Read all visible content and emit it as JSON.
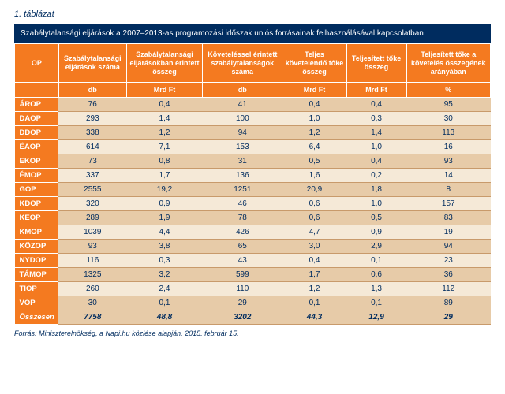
{
  "caption": "1. táblázat",
  "title": "Szabálytalansági eljárások a 2007–2013-as programozási időszak uniós forrásainak felhasználásával kapcsolatban",
  "headers": {
    "c0": "OP",
    "c1": "Szabálytalansági eljárások száma",
    "c2": "Szabálytalansági eljárásokban érintett összeg",
    "c3": "Követeléssel érintett szabálytalanságok száma",
    "c4": "Teljes követelendő tőke összeg",
    "c5": "Teljesített tőke összeg",
    "c6": "Teljesített tőke a követelés összegének arányában"
  },
  "units": {
    "c1": "db",
    "c2": "Mrd Ft",
    "c3": "db",
    "c4": "Mrd Ft",
    "c5": "Mrd Ft",
    "c6": "%"
  },
  "rows": [
    {
      "op": "ÁROP",
      "c1": "76",
      "c2": "0,4",
      "c3": "41",
      "c4": "0,4",
      "c5": "0,4",
      "c6": "95"
    },
    {
      "op": "DAOP",
      "c1": "293",
      "c2": "1,4",
      "c3": "100",
      "c4": "1,0",
      "c5": "0,3",
      "c6": "30"
    },
    {
      "op": "DDOP",
      "c1": "338",
      "c2": "1,2",
      "c3": "94",
      "c4": "1,2",
      "c5": "1,4",
      "c6": "113"
    },
    {
      "op": "ÉAOP",
      "c1": "614",
      "c2": "7,1",
      "c3": "153",
      "c4": "6,4",
      "c5": "1,0",
      "c6": "16"
    },
    {
      "op": "EKOP",
      "c1": "73",
      "c2": "0,8",
      "c3": "31",
      "c4": "0,5",
      "c5": "0,4",
      "c6": "93"
    },
    {
      "op": "ÉMOP",
      "c1": "337",
      "c2": "1,7",
      "c3": "136",
      "c4": "1,6",
      "c5": "0,2",
      "c6": "14"
    },
    {
      "op": "GOP",
      "c1": "2555",
      "c2": "19,2",
      "c3": "1251",
      "c4": "20,9",
      "c5": "1,8",
      "c6": "8"
    },
    {
      "op": "KDOP",
      "c1": "320",
      "c2": "0,9",
      "c3": "46",
      "c4": "0,6",
      "c5": "1,0",
      "c6": "157"
    },
    {
      "op": "KEOP",
      "c1": "289",
      "c2": "1,9",
      "c3": "78",
      "c4": "0,6",
      "c5": "0,5",
      "c6": "83"
    },
    {
      "op": "KMOP",
      "c1": "1039",
      "c2": "4,4",
      "c3": "426",
      "c4": "4,7",
      "c5": "0,9",
      "c6": "19"
    },
    {
      "op": "KÖZOP",
      "c1": "93",
      "c2": "3,8",
      "c3": "65",
      "c4": "3,0",
      "c5": "2,9",
      "c6": "94"
    },
    {
      "op": "NYDOP",
      "c1": "116",
      "c2": "0,3",
      "c3": "43",
      "c4": "0,4",
      "c5": "0,1",
      "c6": "23"
    },
    {
      "op": "TÁMOP",
      "c1": "1325",
      "c2": "3,2",
      "c3": "599",
      "c4": "1,7",
      "c5": "0,6",
      "c6": "36"
    },
    {
      "op": "TIOP",
      "c1": "260",
      "c2": "2,4",
      "c3": "110",
      "c4": "1,2",
      "c5": "1,3",
      "c6": "112"
    },
    {
      "op": "VOP",
      "c1": "30",
      "c2": "0,1",
      "c3": "29",
      "c4": "0,1",
      "c5": "0,1",
      "c6": "89"
    }
  ],
  "total": {
    "op": "Összesen",
    "c1": "7758",
    "c2": "48,8",
    "c3": "3202",
    "c4": "44,3",
    "c5": "12,9",
    "c6": "29"
  },
  "source": "Forrás: Miniszterelnökség, a Napi.hu közlése alapján, 2015. február 15.",
  "column_widths": [
    "55",
    "85",
    "95",
    "100",
    "80",
    "75",
    "105"
  ],
  "colors": {
    "brand_orange": "#f47a20",
    "brand_navy": "#002c5f",
    "row_odd": "#e7cba8",
    "row_even": "#f5e9d7",
    "rule": "#c89a6b"
  }
}
